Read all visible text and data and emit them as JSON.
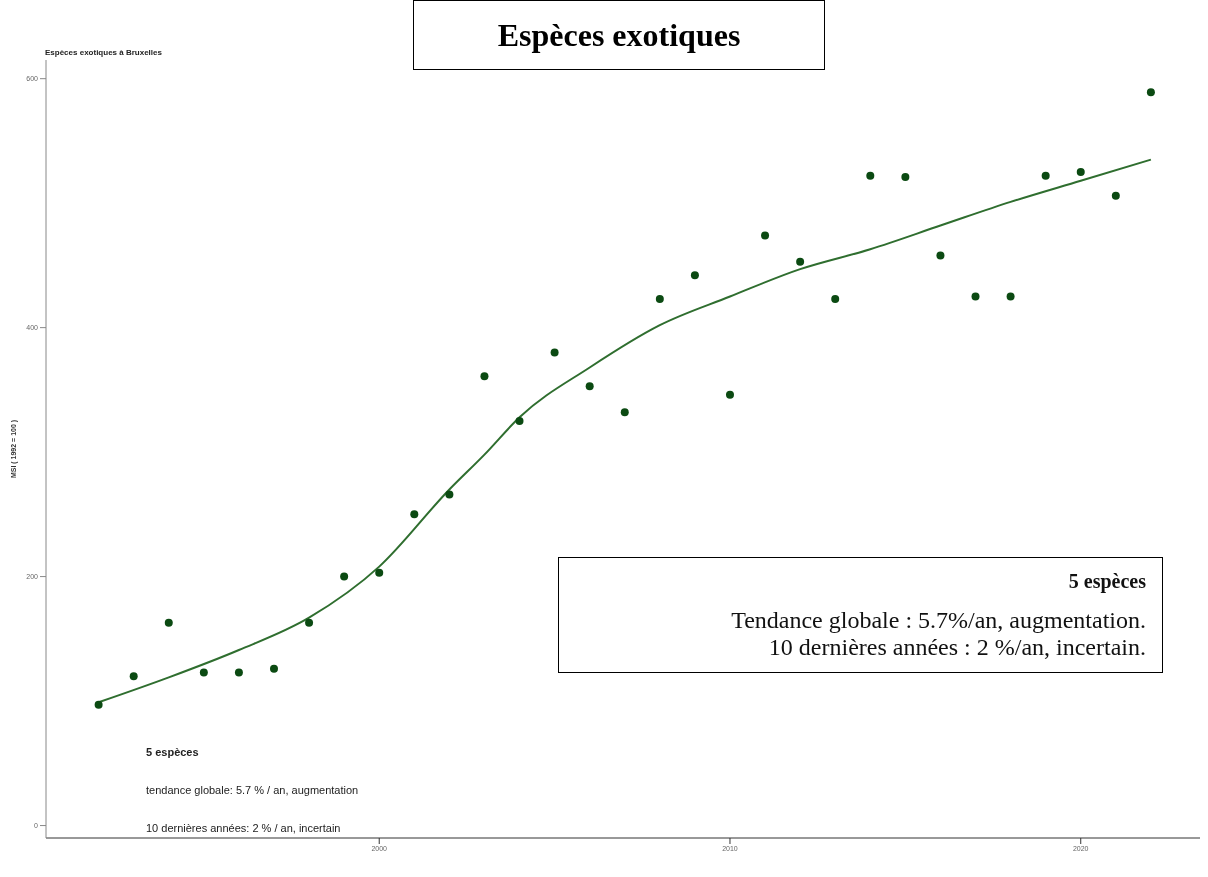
{
  "chart_data": {
    "type": "scatter",
    "title": "Espèces exotiques",
    "subtitle": "Espèces exotiques à Bruxelles",
    "ylabel": "MSI ( 1992 = 100 )",
    "x": [
      1992,
      1993,
      1994,
      1995,
      1996,
      1997,
      1998,
      1999,
      2000,
      2001,
      2002,
      2003,
      2004,
      2005,
      2006,
      2007,
      2008,
      2009,
      2010,
      2011,
      2012,
      2013,
      2014,
      2015,
      2016,
      2017,
      2018,
      2019,
      2020,
      2021,
      2022
    ],
    "series": [
      {
        "color": "#0b4a12",
        "marker": "circle",
        "values": [
          97,
          120,
          163,
          123,
          123,
          126,
          163,
          200,
          203,
          250,
          266,
          361,
          325,
          380,
          353,
          332,
          423,
          442,
          346,
          474,
          453,
          423,
          522,
          521,
          458,
          425,
          425,
          522,
          525,
          506,
          589
        ]
      },
      {
        "type": "line",
        "color": "#2f6e2f",
        "line_style": "solid",
        "x": [
          1992,
          1994,
          1996,
          1998,
          2000,
          2002,
          2003,
          2004,
          2006,
          2008,
          2010,
          2012,
          2014,
          2016,
          2018,
          2020,
          2022
        ],
        "values": [
          99,
          119,
          141,
          167,
          208,
          270,
          298,
          328,
          368,
          402,
          425,
          447,
          463,
          482,
          501,
          518,
          535
        ]
      }
    ],
    "xlim": [
      1990.5,
      2023.4
    ],
    "xticks": [
      2000,
      2010,
      2020
    ],
    "ylim": [
      -10,
      615
    ],
    "yticks": [
      0,
      200,
      400,
      600
    ],
    "grid": false,
    "annotations": [
      "5 espèces",
      "tendance globale: 5.7 % / an, augmentation",
      "10 dernières années: 2 % / an, incertain",
      "5 espèces",
      "Tendance globale : 5.7%/an, augmentation.",
      "10 dernières années : 2 %/an, incertain."
    ]
  }
}
